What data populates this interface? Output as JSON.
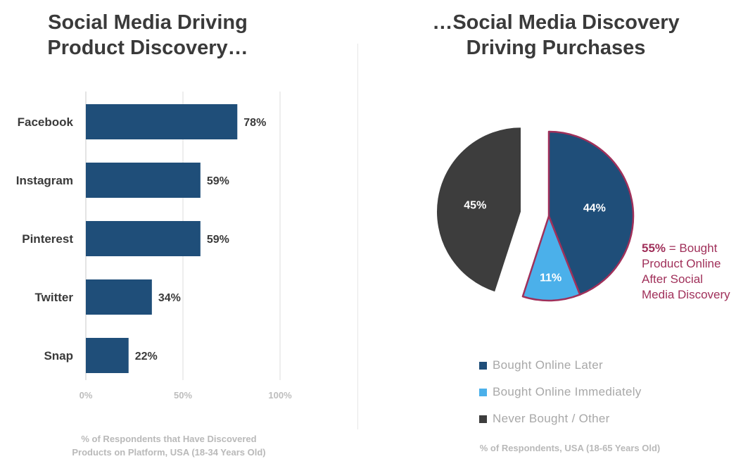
{
  "colors": {
    "bar": "#1f4e79",
    "bought_later": "#1f4e79",
    "bought_immediately": "#4bb0ea",
    "never_bought": "#3d3d3d",
    "highlight": "#a0305a",
    "grid": "#dcdcdc"
  },
  "left": {
    "title_line1": "Social Media Driving",
    "title_line2": "Product Discovery…",
    "caption_line1": "% of Respondents that Have Discovered",
    "caption_line2": "Products on Platform, USA (18-34 Years Old)"
  },
  "right": {
    "title_line1": "…Social Media Discovery",
    "title_line2": "Driving Purchases",
    "caption": "% of Respondents, USA (18-65 Years Old)",
    "callout_value": "55%",
    "callout_line1_rest": " = Bought",
    "callout_line2": "Product Online",
    "callout_line3": "After Social",
    "callout_line4": "Media Discovery"
  },
  "chart_data": [
    {
      "type": "bar",
      "orientation": "horizontal",
      "categories": [
        "Facebook",
        "Instagram",
        "Pinterest",
        "Twitter",
        "Snap"
      ],
      "values": [
        78,
        59,
        59,
        34,
        22
      ],
      "value_labels": [
        "78%",
        "59%",
        "59%",
        "34%",
        "22%"
      ],
      "xlim": [
        0,
        100
      ],
      "x_ticks": [
        "0%",
        "50%",
        "100%"
      ],
      "grid": true
    },
    {
      "type": "pie",
      "labels": [
        "Bought Online Later",
        "Bought Online Immediately",
        "Never Bought / Other"
      ],
      "values": [
        44,
        11,
        45
      ],
      "value_labels": [
        "44%",
        "11%",
        "45%"
      ],
      "exploded": [
        "Never Bought / Other"
      ],
      "legend_position": "bottom"
    }
  ]
}
